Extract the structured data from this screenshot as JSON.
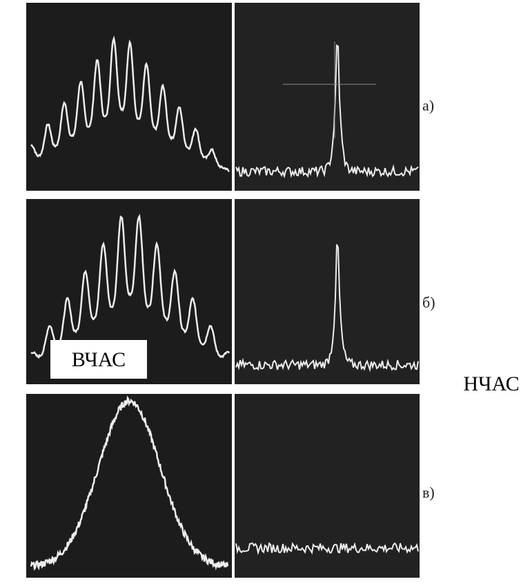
{
  "labels": {
    "left": "ВЧАС",
    "right": "НЧАС"
  },
  "panels": [
    {
      "label": "а)"
    },
    {
      "label": "б)"
    },
    {
      "label": "в)"
    }
  ]
}
